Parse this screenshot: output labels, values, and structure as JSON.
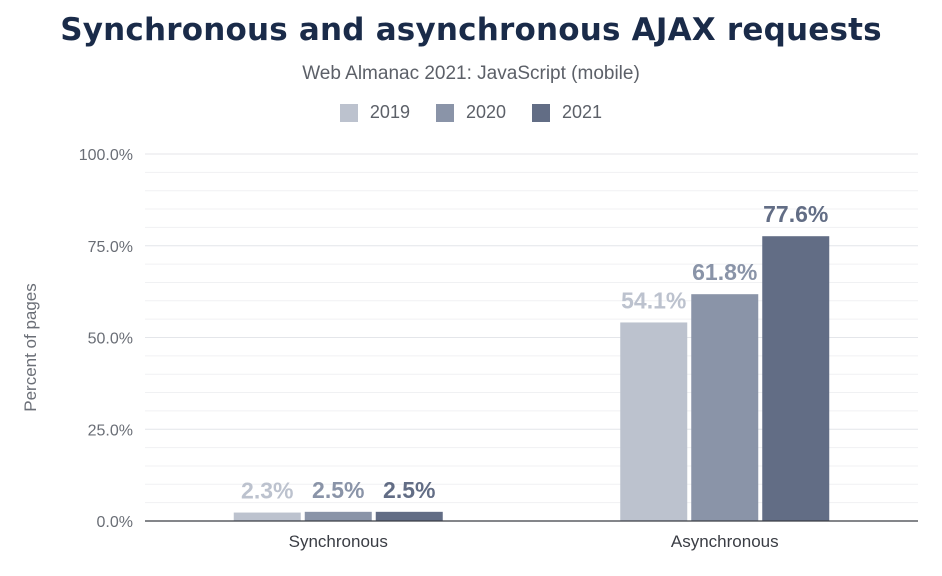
{
  "chart_data": {
    "type": "bar",
    "title": "Synchronous and asynchronous AJAX requests",
    "subtitle": "Web Almanac 2021: JavaScript (mobile)",
    "categories": [
      "Synchronous",
      "Asynchronous"
    ],
    "series": [
      {
        "name": "2019",
        "color": "#bcc2ce",
        "values": [
          2.3,
          54.1
        ],
        "labels": [
          "2.3%",
          "54.1%"
        ]
      },
      {
        "name": "2020",
        "color": "#8a94a8",
        "values": [
          2.5,
          61.8
        ],
        "labels": [
          "2.5%",
          "61.8%"
        ]
      },
      {
        "name": "2021",
        "color": "#626d85",
        "values": [
          2.5,
          77.6
        ],
        "labels": [
          "2.5%",
          "77.6%"
        ]
      }
    ],
    "ylabel": "Percent of pages",
    "ylim": [
      0,
      100
    ],
    "yticks": [
      0,
      25,
      50,
      75,
      100
    ],
    "ytick_labels": [
      "0.0%",
      "25.0%",
      "50.0%",
      "75.0%",
      "100.0%"
    ],
    "grid": true,
    "legend_position": "top-center"
  }
}
